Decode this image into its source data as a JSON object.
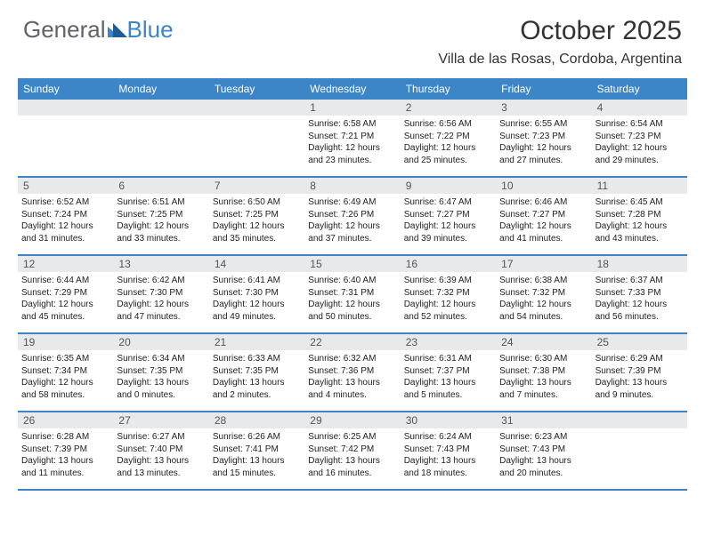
{
  "logo": {
    "part1": "General",
    "part2": "Blue"
  },
  "title": "October 2025",
  "location": "Villa de las Rosas, Cordoba, Argentina",
  "colors": {
    "header_bg": "#3c85c6",
    "header_fg": "#ffffff",
    "daynum_bg": "#e8e9ea",
    "divider": "#3c85c6",
    "logo_gray": "#5f6368",
    "logo_blue": "#3c85c6",
    "text": "#222222",
    "background": "#ffffff"
  },
  "typography": {
    "month_title_pt": 30,
    "location_pt": 16,
    "dayhead_pt": 12,
    "daynum_pt": 12,
    "body_pt": 10
  },
  "layout": {
    "columns": 7,
    "rows": 5,
    "leading_blanks": 3
  },
  "day_names": [
    "Sunday",
    "Monday",
    "Tuesday",
    "Wednesday",
    "Thursday",
    "Friday",
    "Saturday"
  ],
  "days": [
    {
      "n": "1",
      "sunrise": "6:58 AM",
      "sunset": "7:21 PM",
      "dl": "12 hours and 23 minutes."
    },
    {
      "n": "2",
      "sunrise": "6:56 AM",
      "sunset": "7:22 PM",
      "dl": "12 hours and 25 minutes."
    },
    {
      "n": "3",
      "sunrise": "6:55 AM",
      "sunset": "7:23 PM",
      "dl": "12 hours and 27 minutes."
    },
    {
      "n": "4",
      "sunrise": "6:54 AM",
      "sunset": "7:23 PM",
      "dl": "12 hours and 29 minutes."
    },
    {
      "n": "5",
      "sunrise": "6:52 AM",
      "sunset": "7:24 PM",
      "dl": "12 hours and 31 minutes."
    },
    {
      "n": "6",
      "sunrise": "6:51 AM",
      "sunset": "7:25 PM",
      "dl": "12 hours and 33 minutes."
    },
    {
      "n": "7",
      "sunrise": "6:50 AM",
      "sunset": "7:25 PM",
      "dl": "12 hours and 35 minutes."
    },
    {
      "n": "8",
      "sunrise": "6:49 AM",
      "sunset": "7:26 PM",
      "dl": "12 hours and 37 minutes."
    },
    {
      "n": "9",
      "sunrise": "6:47 AM",
      "sunset": "7:27 PM",
      "dl": "12 hours and 39 minutes."
    },
    {
      "n": "10",
      "sunrise": "6:46 AM",
      "sunset": "7:27 PM",
      "dl": "12 hours and 41 minutes."
    },
    {
      "n": "11",
      "sunrise": "6:45 AM",
      "sunset": "7:28 PM",
      "dl": "12 hours and 43 minutes."
    },
    {
      "n": "12",
      "sunrise": "6:44 AM",
      "sunset": "7:29 PM",
      "dl": "12 hours and 45 minutes."
    },
    {
      "n": "13",
      "sunrise": "6:42 AM",
      "sunset": "7:30 PM",
      "dl": "12 hours and 47 minutes."
    },
    {
      "n": "14",
      "sunrise": "6:41 AM",
      "sunset": "7:30 PM",
      "dl": "12 hours and 49 minutes."
    },
    {
      "n": "15",
      "sunrise": "6:40 AM",
      "sunset": "7:31 PM",
      "dl": "12 hours and 50 minutes."
    },
    {
      "n": "16",
      "sunrise": "6:39 AM",
      "sunset": "7:32 PM",
      "dl": "12 hours and 52 minutes."
    },
    {
      "n": "17",
      "sunrise": "6:38 AM",
      "sunset": "7:32 PM",
      "dl": "12 hours and 54 minutes."
    },
    {
      "n": "18",
      "sunrise": "6:37 AM",
      "sunset": "7:33 PM",
      "dl": "12 hours and 56 minutes."
    },
    {
      "n": "19",
      "sunrise": "6:35 AM",
      "sunset": "7:34 PM",
      "dl": "12 hours and 58 minutes."
    },
    {
      "n": "20",
      "sunrise": "6:34 AM",
      "sunset": "7:35 PM",
      "dl": "13 hours and 0 minutes."
    },
    {
      "n": "21",
      "sunrise": "6:33 AM",
      "sunset": "7:35 PM",
      "dl": "13 hours and 2 minutes."
    },
    {
      "n": "22",
      "sunrise": "6:32 AM",
      "sunset": "7:36 PM",
      "dl": "13 hours and 4 minutes."
    },
    {
      "n": "23",
      "sunrise": "6:31 AM",
      "sunset": "7:37 PM",
      "dl": "13 hours and 5 minutes."
    },
    {
      "n": "24",
      "sunrise": "6:30 AM",
      "sunset": "7:38 PM",
      "dl": "13 hours and 7 minutes."
    },
    {
      "n": "25",
      "sunrise": "6:29 AM",
      "sunset": "7:39 PM",
      "dl": "13 hours and 9 minutes."
    },
    {
      "n": "26",
      "sunrise": "6:28 AM",
      "sunset": "7:39 PM",
      "dl": "13 hours and 11 minutes."
    },
    {
      "n": "27",
      "sunrise": "6:27 AM",
      "sunset": "7:40 PM",
      "dl": "13 hours and 13 minutes."
    },
    {
      "n": "28",
      "sunrise": "6:26 AM",
      "sunset": "7:41 PM",
      "dl": "13 hours and 15 minutes."
    },
    {
      "n": "29",
      "sunrise": "6:25 AM",
      "sunset": "7:42 PM",
      "dl": "13 hours and 16 minutes."
    },
    {
      "n": "30",
      "sunrise": "6:24 AM",
      "sunset": "7:43 PM",
      "dl": "13 hours and 18 minutes."
    },
    {
      "n": "31",
      "sunrise": "6:23 AM",
      "sunset": "7:43 PM",
      "dl": "13 hours and 20 minutes."
    }
  ],
  "labels": {
    "sunrise": "Sunrise:",
    "sunset": "Sunset:",
    "daylight": "Daylight:"
  }
}
